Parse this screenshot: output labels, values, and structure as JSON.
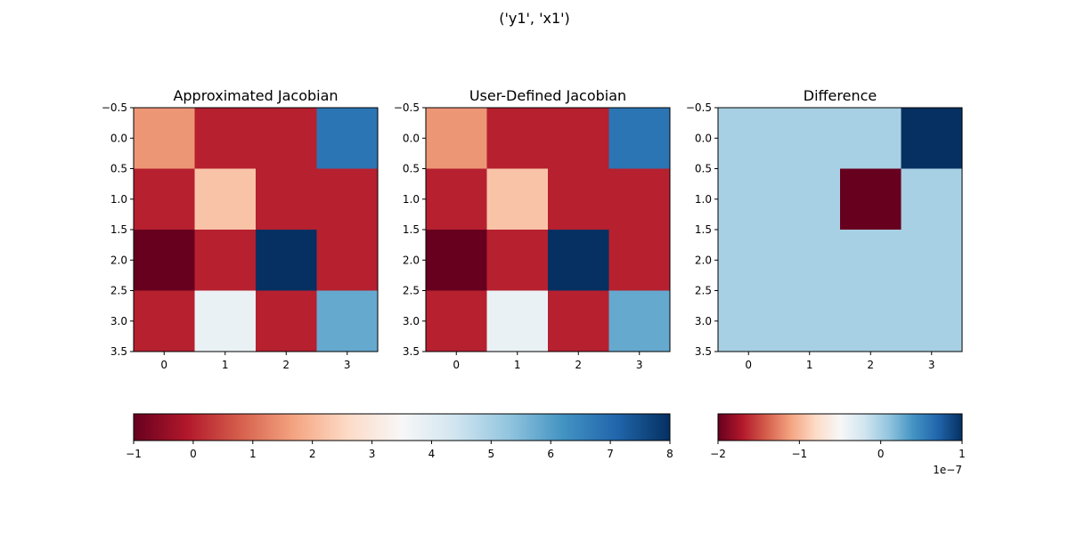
{
  "figure": {
    "suptitle": "('y1', 'x1')"
  },
  "chart_data": [
    {
      "type": "heatmap",
      "title": "Approximated Jacobian",
      "colormap": "RdBu",
      "vmin": -1,
      "vmax": 8,
      "xticks": [
        "0",
        "1",
        "2",
        "3"
      ],
      "yticks": [
        "−0.5",
        "0.0",
        "0.5",
        "1.0",
        "1.5",
        "2.0",
        "2.5",
        "3.0",
        "3.5"
      ],
      "xlim": [
        -0.5,
        3.5
      ],
      "ylim": [
        3.5,
        -0.5
      ],
      "values": [
        [
          1.5,
          0,
          0,
          6.8
        ],
        [
          0,
          2.2,
          0,
          0
        ],
        [
          -1,
          0,
          8,
          0
        ],
        [
          0,
          3.8,
          0,
          5.8
        ]
      ]
    },
    {
      "type": "heatmap",
      "title": "User-Defined Jacobian",
      "colormap": "RdBu",
      "vmin": -1,
      "vmax": 8,
      "xticks": [
        "0",
        "1",
        "2",
        "3"
      ],
      "yticks": [
        "−0.5",
        "0.0",
        "0.5",
        "1.0",
        "1.5",
        "2.0",
        "2.5",
        "3.0",
        "3.5"
      ],
      "xlim": [
        -0.5,
        3.5
      ],
      "ylim": [
        3.5,
        -0.5
      ],
      "values": [
        [
          1.5,
          0,
          0,
          6.8
        ],
        [
          0,
          2.2,
          0,
          0
        ],
        [
          -1,
          0,
          8,
          0
        ],
        [
          0,
          3.8,
          0,
          5.8
        ]
      ]
    },
    {
      "type": "heatmap",
      "title": "Difference",
      "colormap": "RdBu",
      "vmin": -2e-07,
      "vmax": 1e-07,
      "xticks": [
        "0",
        "1",
        "2",
        "3"
      ],
      "yticks": [
        "−0.5",
        "0.0",
        "0.5",
        "1.0",
        "1.5",
        "2.0",
        "2.5",
        "3.0",
        "3.5"
      ],
      "xlim": [
        -0.5,
        3.5
      ],
      "ylim": [
        3.5,
        -0.5
      ],
      "values": [
        [
          0,
          0,
          0,
          1e-07
        ],
        [
          0,
          0,
          -2e-07,
          0
        ],
        [
          0,
          0,
          0,
          0
        ],
        [
          0,
          0,
          0,
          0
        ]
      ]
    }
  ],
  "colorbars": [
    {
      "name": "jacobian-colorbar",
      "vmin": -1,
      "vmax": 8,
      "ticks": [
        {
          "value": -1,
          "label": "−1"
        },
        {
          "value": 0,
          "label": "0"
        },
        {
          "value": 1,
          "label": "1"
        },
        {
          "value": 2,
          "label": "2"
        },
        {
          "value": 3,
          "label": "3"
        },
        {
          "value": 4,
          "label": "4"
        },
        {
          "value": 5,
          "label": "5"
        },
        {
          "value": 6,
          "label": "6"
        },
        {
          "value": 7,
          "label": "7"
        },
        {
          "value": 8,
          "label": "8"
        }
      ],
      "offset_label": ""
    },
    {
      "name": "difference-colorbar",
      "vmin": -2e-07,
      "vmax": 1e-07,
      "ticks": [
        {
          "value": -2e-07,
          "label": "−2"
        },
        {
          "value": -1e-07,
          "label": "−1"
        },
        {
          "value": 0,
          "label": "0"
        },
        {
          "value": 1e-07,
          "label": "1"
        }
      ],
      "offset_label": "1e−7"
    }
  ],
  "colormap_stops": [
    "#67001f",
    "#b2182b",
    "#d6604d",
    "#f4a582",
    "#fddbc7",
    "#f7f7f7",
    "#d1e5f0",
    "#92c5de",
    "#4393c3",
    "#2166ac",
    "#053061"
  ]
}
